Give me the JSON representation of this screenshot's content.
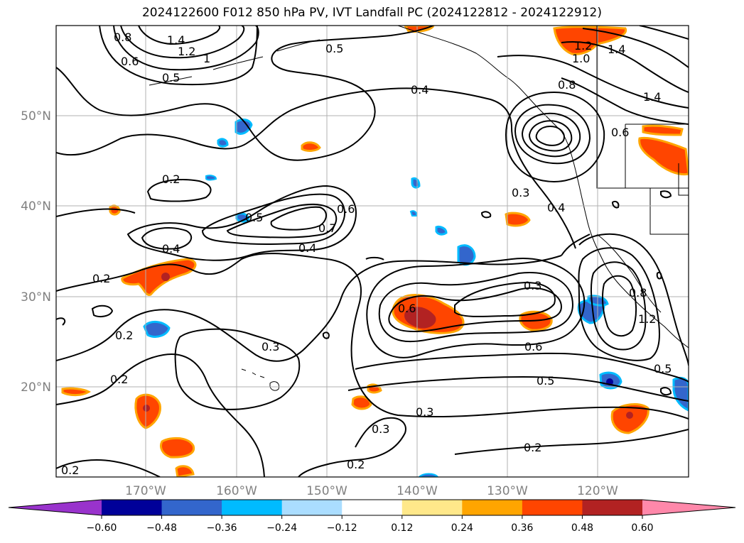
{
  "title": "2024122600 F012 850 hPa PV, IVT Landfall PC (2024122812 - 2024122912)",
  "map": {
    "lon_labels": [
      "170°W",
      "160°W",
      "150°W",
      "140°W",
      "130°W",
      "120°W"
    ],
    "lat_labels": [
      "50°N",
      "40°N",
      "30°N",
      "20°N"
    ],
    "contour_labels": [
      "1.4",
      "1.2",
      "0.8",
      "0.6",
      "0.5",
      "1",
      "0.5",
      "0.4",
      "0.8",
      "1.0",
      "1.2",
      "1.4",
      "1.4",
      "0.6",
      "0.2",
      "0.5",
      "0.6",
      "0.7",
      "0.4",
      "0.4",
      "0.3",
      "0.4",
      "0.2",
      "0.3",
      "0.6",
      "0.2",
      "0.3",
      "0.6",
      "0.8",
      "1.2",
      "0.2",
      "0.5",
      "0.5",
      "0.3",
      "0.3",
      "0.2",
      "0.2",
      "0.2"
    ]
  },
  "colorbar": {
    "ticks": [
      "−0.60",
      "−0.48",
      "−0.36",
      "−0.24",
      "−0.12",
      "0.12",
      "0.24",
      "0.36",
      "0.48",
      "0.60"
    ],
    "colors": [
      "#9933cc",
      "#000099",
      "#3366cc",
      "#00bbff",
      "#aaddff",
      "#ffffff",
      "#ffe88a",
      "#ffa500",
      "#ff4500",
      "#b22222",
      "#ff88aa"
    ]
  }
}
